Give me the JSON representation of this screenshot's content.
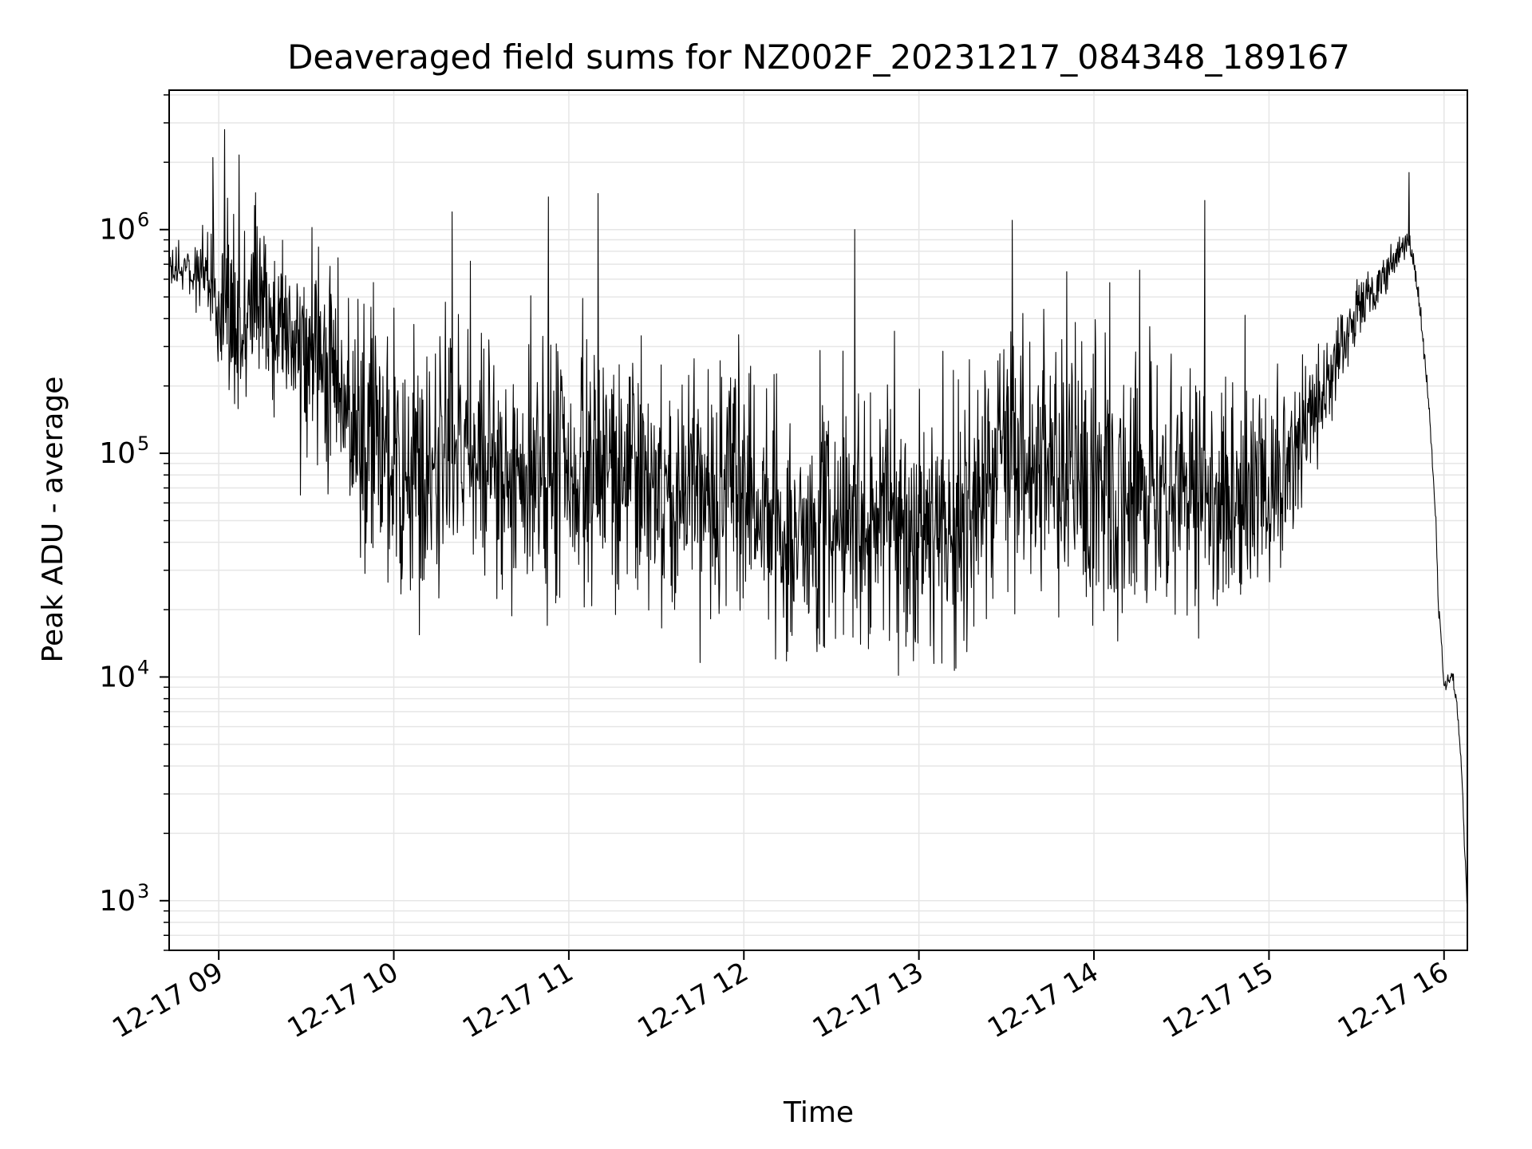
{
  "chart_data": {
    "type": "line",
    "title": "Deaveraged field sums for NZ002F_20231217_084348_189167",
    "xlabel": "Time",
    "ylabel": "Peak ADU - average",
    "yscale": "log",
    "grid": true,
    "grid_color": "#e6e6e6",
    "line_color": "#000000",
    "xlim": [
      "2023-12-17 08:43",
      "2023-12-17 16:08"
    ],
    "ylim": [
      600,
      4200000
    ],
    "x_ticks": [
      "12-17 09",
      "12-17 10",
      "12-17 11",
      "12-17 12",
      "12-17 13",
      "12-17 14",
      "12-17 15",
      "12-17 16"
    ],
    "y_ticks": [
      {
        "value": 1000,
        "label": "10",
        "exp": "3"
      },
      {
        "value": 10000,
        "label": "10",
        "exp": "4"
      },
      {
        "value": 100000,
        "label": "10",
        "exp": "5"
      },
      {
        "value": 1000000,
        "label": "10",
        "exp": "6"
      }
    ],
    "series": [
      {
        "envelope": {
          "x": [
            "2023-12-17 08:43",
            "2023-12-17 08:50",
            "2023-12-17 08:55",
            "2023-12-17 09:00",
            "2023-12-17 09:15",
            "2023-12-17 09:30",
            "2023-12-17 09:45",
            "2023-12-17 10:00",
            "2023-12-17 10:30",
            "2023-12-17 11:00",
            "2023-12-17 11:30",
            "2023-12-17 12:00",
            "2023-12-17 12:15",
            "2023-12-17 12:30",
            "2023-12-17 13:00",
            "2023-12-17 13:15",
            "2023-12-17 13:30",
            "2023-12-17 14:00",
            "2023-12-17 14:30",
            "2023-12-17 15:00",
            "2023-12-17 15:10",
            "2023-12-17 15:20",
            "2023-12-17 15:30",
            "2023-12-17 15:40",
            "2023-12-17 15:48",
            "2023-12-17 15:53",
            "2023-12-17 15:56",
            "2023-12-17 15:58",
            "2023-12-17 16:00",
            "2023-12-17 16:03",
            "2023-12-17 16:05",
            "2023-12-17 16:07",
            "2023-12-17 16:08"
          ],
          "center": [
            650000,
            650000,
            600000,
            450000,
            450000,
            320000,
            150000,
            85000,
            80000,
            75000,
            70000,
            60000,
            40000,
            45000,
            45000,
            42000,
            90000,
            70000,
            65000,
            60000,
            100000,
            200000,
            400000,
            650000,
            900000,
            280000,
            90000,
            20000,
            9000,
            10000,
            6000,
            1700,
            900
          ],
          "spread": [
            0.12,
            0.15,
            0.3,
            0.5,
            0.55,
            0.62,
            0.75,
            0.8,
            0.8,
            0.78,
            0.78,
            0.8,
            0.75,
            0.78,
            0.78,
            0.75,
            0.78,
            0.8,
            0.8,
            0.65,
            0.45,
            0.3,
            0.2,
            0.15,
            0.08,
            0.05,
            0.05,
            0.05,
            0.04,
            0.04,
            0.05,
            0.05,
            0.03
          ]
        }
      }
    ],
    "spikes": [
      {
        "x": "2023-12-17 09:02",
        "y": 2800000
      },
      {
        "x": "2023-12-17 08:58",
        "y": 2100000
      },
      {
        "x": "2023-12-17 10:20",
        "y": 1200000
      },
      {
        "x": "2023-12-17 10:53",
        "y": 1400000
      },
      {
        "x": "2023-12-17 11:10",
        "y": 1450000
      },
      {
        "x": "2023-12-17 12:38",
        "y": 1000000
      },
      {
        "x": "2023-12-17 13:32",
        "y": 1100000
      },
      {
        "x": "2023-12-17 14:38",
        "y": 1350000
      },
      {
        "x": "2023-12-17 15:48",
        "y": 1800000
      },
      {
        "x": "2023-12-17 09:28",
        "y": 65000
      },
      {
        "x": "2023-12-17 12:15",
        "y": 13000
      },
      {
        "x": "2023-12-17 12:40",
        "y": 14000
      },
      {
        "x": "2023-12-17 11:16",
        "y": 19000
      }
    ]
  }
}
